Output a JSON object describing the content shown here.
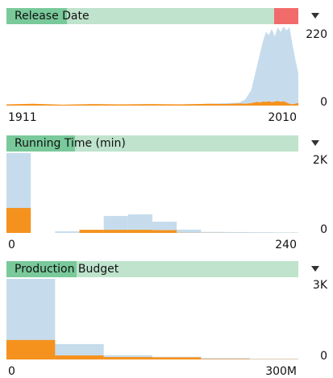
{
  "chart_data": [
    {
      "type": "area",
      "title": "Release Date",
      "x": [
        1911,
        1920,
        1930,
        1940,
        1950,
        1960,
        1970,
        1980,
        1985,
        1990,
        1992,
        1994,
        1995,
        1996,
        1997,
        1998,
        1999,
        2000,
        2001,
        2002,
        2003,
        2004,
        2005,
        2006,
        2007,
        2008,
        2009,
        2010
      ],
      "series": [
        {
          "color": "#c6dcec",
          "values": [
            2,
            2,
            2,
            3,
            3,
            3,
            4,
            6,
            8,
            10,
            20,
            50,
            90,
            130,
            170,
            210,
            240,
            230,
            250,
            225,
            255,
            240,
            258,
            245,
            255,
            200,
            150,
            105
          ]
        },
        {
          "color": "#f5921e",
          "values": [
            4,
            6,
            3,
            5,
            4,
            5,
            4,
            6,
            5,
            7,
            6,
            8,
            10,
            12,
            10,
            13,
            12,
            14,
            11,
            13,
            15,
            12,
            14,
            10,
            6,
            4,
            6,
            9
          ]
        }
      ],
      "xlim": [
        1911,
        2010
      ],
      "xticks": [
        1911,
        2010
      ],
      "ylim": [
        0,
        260
      ],
      "yticks": [
        0,
        220
      ]
    },
    {
      "type": "histogram",
      "title": "Running Time (min)",
      "bins": [
        0,
        20,
        40,
        60,
        80,
        100,
        120,
        140,
        160,
        180,
        200,
        220,
        240
      ],
      "series": [
        {
          "color": "#c6dcec",
          "values": [
            2310,
            0,
            45,
            70,
            490,
            535,
            325,
            95,
            30,
            25,
            20,
            15
          ]
        },
        {
          "color": "#f5921e",
          "values": [
            720,
            0,
            0,
            90,
            90,
            90,
            80,
            5,
            3,
            2,
            1,
            1
          ]
        }
      ],
      "xlim": [
        0,
        240
      ],
      "xticks": [
        0,
        240
      ],
      "ylim": [
        0,
        2350
      ],
      "yticks": [
        0,
        {
          "value": 2000,
          "label": "2K"
        }
      ]
    },
    {
      "type": "histogram",
      "title": "Production Budget",
      "bins": [
        0,
        50000000,
        100000000,
        150000000,
        200000000,
        250000000,
        300000000
      ],
      "series": [
        {
          "color": "#c6dcec",
          "values": [
            3400,
            650,
            180,
            110,
            60,
            30
          ]
        },
        {
          "color": "#f5921e",
          "values": [
            820,
            170,
            100,
            90,
            20,
            10
          ]
        }
      ],
      "xlim": [
        0,
        300000000
      ],
      "xticks": [
        0,
        {
          "value": 300000000,
          "label": "300M"
        }
      ],
      "ylim": [
        0,
        3400
      ],
      "yticks": [
        0,
        {
          "value": 3000,
          "label": "3K"
        }
      ]
    }
  ]
}
